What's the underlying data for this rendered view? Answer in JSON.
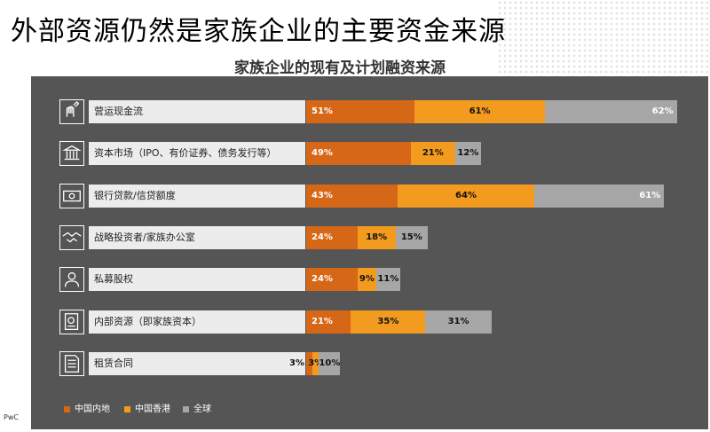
{
  "page_title": "外部资源仍然是家族企业的主要资金来源",
  "footer": {
    "brand": "PwC"
  },
  "colors": {
    "mainland": "#d66716",
    "hongkong": "#f29b1e",
    "global": "#a6a6a6",
    "panel": "#555555"
  },
  "chart_data": {
    "type": "bar",
    "orientation": "horizontal-stacked",
    "title": "家族企业的现有及计划融资来源",
    "categories": [
      "营运现金流",
      "资本市场（IPO、有价证券、债务发行等）",
      "银行贷款/信贷额度",
      "战略投资者/家族办公室",
      "私募股权",
      "内部资源（即家族资本）",
      "租赁合同"
    ],
    "icons": [
      "hand-pen-icon",
      "capital-building-icon",
      "banknote-icon",
      "handshake-icon",
      "person-icon",
      "document-seal-icon",
      "document-lines-icon"
    ],
    "series": [
      {
        "name": "中国内地",
        "values": [
          51,
          49,
          43,
          24,
          24,
          21,
          3
        ]
      },
      {
        "name": "中国香港",
        "values": [
          61,
          21,
          64,
          18,
          9,
          35,
          3
        ]
      },
      {
        "name": "全球",
        "values": [
          62,
          12,
          61,
          15,
          11,
          31,
          10
        ]
      }
    ],
    "value_suffix": "%",
    "legend": {
      "position": "bottom-left"
    }
  }
}
